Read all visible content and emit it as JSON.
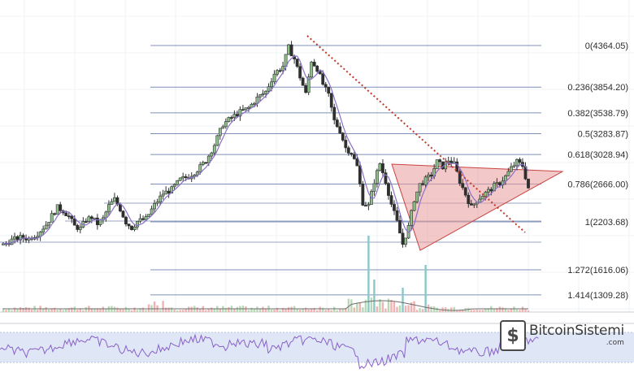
{
  "chart_data": [
    {
      "type": "candlestick",
      "title": "",
      "xlabel": "",
      "ylabel": "",
      "grid": true,
      "fibonacci_levels": [
        {
          "ratio": "0",
          "price": 4364.05,
          "label": "0(4364.05)"
        },
        {
          "ratio": "0.236",
          "price": 3854.2,
          "label": "0.236(3854.20)"
        },
        {
          "ratio": "0.382",
          "price": 3538.79,
          "label": "0.382(3538.79)"
        },
        {
          "ratio": "0.5",
          "price": 3283.87,
          "label": "0.5(3283.87)"
        },
        {
          "ratio": "0.618",
          "price": 3028.94,
          "label": "0.618(3028.94)"
        },
        {
          "ratio": "0.786",
          "price": 2666.0,
          "label": "0.786(2666.00)"
        },
        {
          "ratio": "1",
          "price": 2203.68,
          "label": "1(2203.68)"
        },
        {
          "ratio": "1.272",
          "price": 1616.06,
          "label": "1.272(1616.06)"
        },
        {
          "ratio": "1.414",
          "price": 1309.28,
          "label": "1.414(1309.28)"
        }
      ],
      "price_path": [
        [
          0,
          1920
        ],
        [
          3,
          1980
        ],
        [
          6,
          2010
        ],
        [
          9,
          2000
        ],
        [
          12,
          2060
        ],
        [
          15,
          2170
        ],
        [
          17,
          2280
        ],
        [
          19,
          2380
        ],
        [
          21,
          2340
        ],
        [
          23,
          2270
        ],
        [
          25,
          2150
        ],
        [
          27,
          2120
        ],
        [
          29,
          2230
        ],
        [
          31,
          2260
        ],
        [
          33,
          2180
        ],
        [
          35,
          2240
        ],
        [
          37,
          2400
        ],
        [
          39,
          2480
        ],
        [
          41,
          2360
        ],
        [
          43,
          2200
        ],
        [
          45,
          2130
        ],
        [
          47,
          2210
        ],
        [
          50,
          2240
        ],
        [
          53,
          2410
        ],
        [
          56,
          2550
        ],
        [
          59,
          2600
        ],
        [
          62,
          2720
        ],
        [
          65,
          2760
        ],
        [
          68,
          2840
        ],
        [
          71,
          2950
        ],
        [
          74,
          3150
        ],
        [
          77,
          3400
        ],
        [
          80,
          3480
        ],
        [
          83,
          3550
        ],
        [
          86,
          3600
        ],
        [
          89,
          3720
        ],
        [
          92,
          3800
        ],
        [
          95,
          4020
        ],
        [
          98,
          4110
        ],
        [
          100,
          4340
        ],
        [
          102,
          4200
        ],
        [
          104,
          3980
        ],
        [
          106,
          3770
        ],
        [
          108,
          4180
        ],
        [
          110,
          4080
        ],
        [
          112,
          3890
        ],
        [
          114,
          3750
        ],
        [
          116,
          3440
        ],
        [
          118,
          3320
        ],
        [
          120,
          3110
        ],
        [
          122,
          3050
        ],
        [
          124,
          2880
        ],
        [
          126,
          2440
        ],
        [
          128,
          2400
        ],
        [
          130,
          2700
        ],
        [
          132,
          2920
        ],
        [
          134,
          2700
        ],
        [
          136,
          2420
        ],
        [
          138,
          2200
        ],
        [
          140,
          1930
        ],
        [
          142,
          2140
        ],
        [
          144,
          2480
        ],
        [
          146,
          2660
        ],
        [
          148,
          2720
        ],
        [
          150,
          2780
        ],
        [
          152,
          2940
        ],
        [
          154,
          2880
        ],
        [
          156,
          2960
        ],
        [
          158,
          2910
        ],
        [
          160,
          2700
        ],
        [
          162,
          2540
        ],
        [
          164,
          2380
        ],
        [
          166,
          2470
        ],
        [
          168,
          2530
        ],
        [
          170,
          2580
        ],
        [
          172,
          2640
        ],
        [
          174,
          2680
        ],
        [
          176,
          2760
        ],
        [
          178,
          2860
        ],
        [
          180,
          2940
        ],
        [
          182,
          2890
        ],
        [
          184,
          2620
        ]
      ],
      "pattern": "symmetrical-triangle",
      "annotations": [
        "descending-trendline",
        "triangle-pattern"
      ],
      "colors": {
        "up_candle": "#8fbf8b",
        "down_candle": "#2f2f2f",
        "moving_average": "#8a70c8",
        "fib_line": "#7f90b8",
        "trendline": "#c0392b",
        "triangle_fill": "#e99a9a",
        "triangle_stroke": "#c8423f"
      }
    },
    {
      "type": "bar",
      "role": "volume",
      "colors": {
        "up": "#b8d9b4",
        "down": "#efb3b3",
        "spike": "#8cc7c7"
      }
    },
    {
      "type": "line",
      "role": "oscillator",
      "colors": {
        "line": "#8a60c7",
        "band": "#dfe7f7"
      }
    }
  ],
  "watermark": {
    "logo_glyph": "$",
    "name": "BitcoinSistemi",
    "suffix": ".com"
  }
}
